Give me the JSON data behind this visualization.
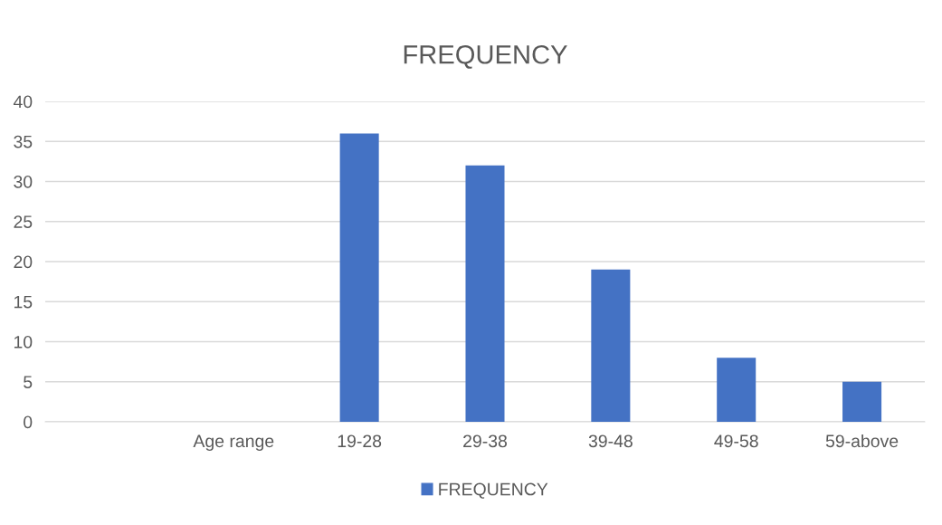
{
  "chart_data": {
    "type": "bar",
    "title": "FREQUENCY",
    "categories": [
      null,
      "Age range",
      "19-28",
      "29-38",
      "39-48",
      "49-58",
      "59-above"
    ],
    "series": [
      {
        "name": "FREQUENCY",
        "color": "#4472c4",
        "values": [
          null,
          null,
          36,
          32,
          19,
          8,
          5
        ]
      }
    ],
    "ylim": [
      0,
      40
    ],
    "yticks": [
      0,
      5,
      10,
      15,
      20,
      25,
      30,
      35,
      40
    ],
    "grid": "y",
    "legend": "bottom"
  }
}
